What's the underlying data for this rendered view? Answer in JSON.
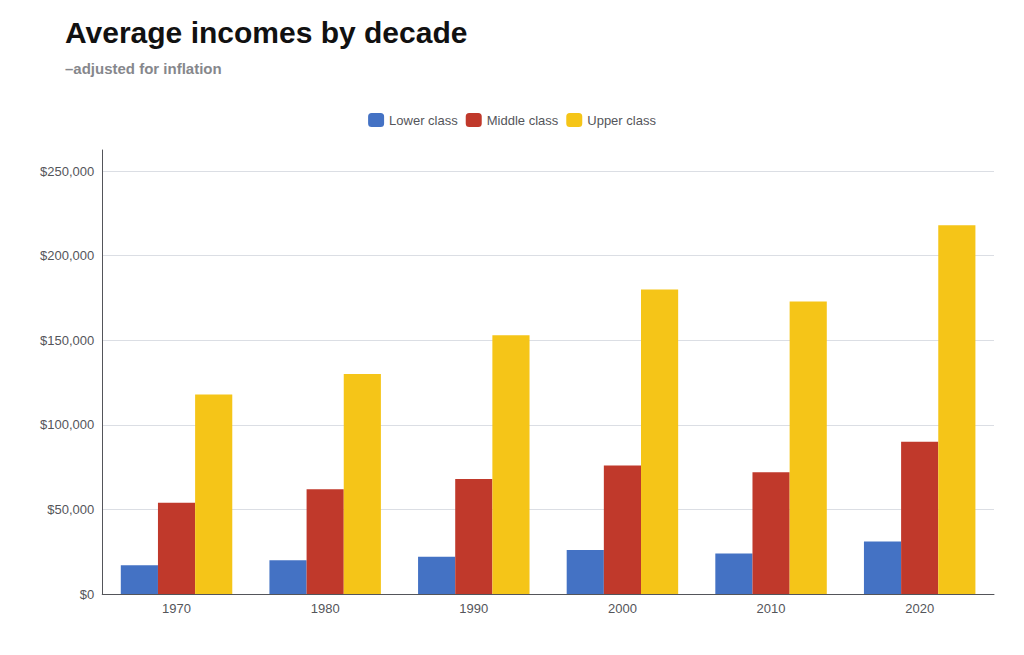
{
  "chart_data": {
    "type": "bar",
    "title": "Average incomes by decade",
    "subtitle": "–adjusted for inflation",
    "categories": [
      "1970",
      "1980",
      "1990",
      "2000",
      "2010",
      "2020"
    ],
    "series": [
      {
        "name": "Lower class",
        "color": "#4472c4",
        "values": [
          17000,
          20000,
          22000,
          26000,
          24000,
          31000
        ]
      },
      {
        "name": "Middle class",
        "color": "#c0392b",
        "values": [
          54000,
          62000,
          68000,
          76000,
          72000,
          90000
        ]
      },
      {
        "name": "Upper class",
        "color": "#f5c518",
        "values": [
          118000,
          130000,
          153000,
          180000,
          173000,
          218000
        ]
      }
    ],
    "ylim": [
      0,
      262500
    ],
    "yticks": [
      {
        "value": 0,
        "label": "$0"
      },
      {
        "value": 50000,
        "label": "$50,000"
      },
      {
        "value": 100000,
        "label": "$100,000"
      },
      {
        "value": 150000,
        "label": "$150,000"
      },
      {
        "value": 200000,
        "label": "$200,000"
      },
      {
        "value": 250000,
        "label": "$250,000"
      }
    ],
    "grid": true,
    "legend": "top"
  }
}
